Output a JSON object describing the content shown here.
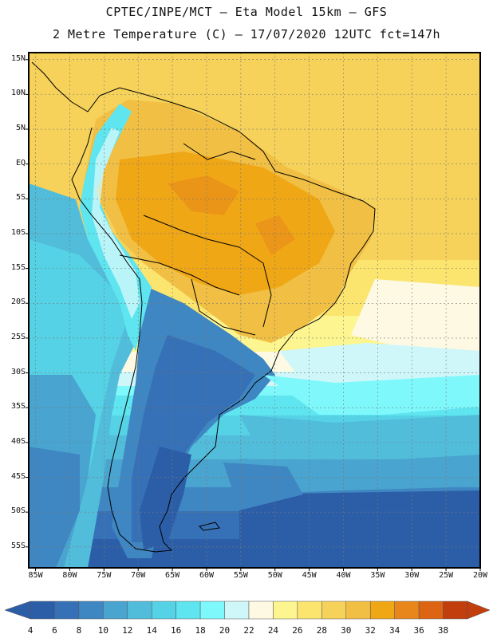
{
  "header": {
    "line1": "CPTEC/INPE/MCT –  Eta Model 15km – GFS",
    "line2": "2 Metre Temperature (C) – 17/07/2020 12UTC fct=147h"
  },
  "axes": {
    "lat_labels": [
      "15N",
      "10N",
      "5N",
      "EQ",
      "5S",
      "10S",
      "15S",
      "20S",
      "25S",
      "30S",
      "35S",
      "40S",
      "45S",
      "50S",
      "55S"
    ],
    "lat_values": [
      15,
      10,
      5,
      0,
      -5,
      -10,
      -15,
      -20,
      -25,
      -30,
      -35,
      -40,
      -45,
      -50,
      -55
    ],
    "lon_labels": [
      "85W",
      "80W",
      "75W",
      "70W",
      "65W",
      "60W",
      "55W",
      "50W",
      "45W",
      "40W",
      "35W",
      "30W",
      "25W",
      "20W"
    ],
    "lon_values": [
      -85,
      -80,
      -75,
      -70,
      -65,
      -60,
      -55,
      -50,
      -45,
      -40,
      -35,
      -30,
      -25,
      -20
    ],
    "lon_range": [
      -86,
      -20
    ],
    "lat_range": [
      -58,
      16
    ]
  },
  "colorbar": {
    "labels": [
      "4",
      "6",
      "8",
      "10",
      "12",
      "14",
      "16",
      "18",
      "20",
      "22",
      "24",
      "26",
      "28",
      "30",
      "32",
      "34",
      "36",
      "38"
    ],
    "colors": [
      "#2c5ea8",
      "#3670b6",
      "#3f87c2",
      "#49a4cf",
      "#52bcdb",
      "#55d2e5",
      "#5ee5f0",
      "#7ef8fb",
      "#cff7fa",
      "#fdf9e3",
      "#fdf58f",
      "#fbe56f",
      "#f6d25a",
      "#f1bf43",
      "#f0a716",
      "#e8861b",
      "#dd6413",
      "#c23e0c"
    ]
  }
}
